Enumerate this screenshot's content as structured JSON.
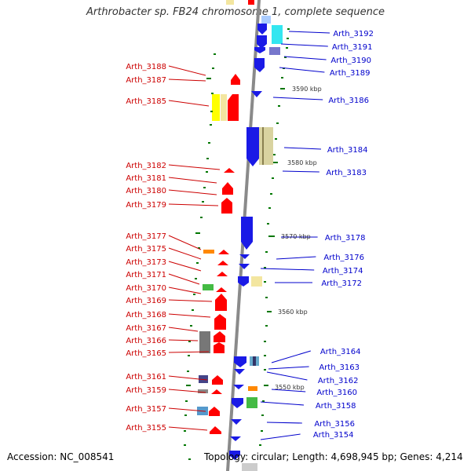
{
  "title": "Arthrobacter sp. FB24 chromosome 1, complete sequence",
  "footer": {
    "accession": "Accession: NC_008541",
    "topology": "Topology: circular; Length: 4,698,945 bp; Genes: 4,214"
  },
  "colors": {
    "forward_label": "#cc0000",
    "reverse_label": "#0000cc",
    "forward_gene": "#ff0000",
    "reverse_gene": "#0000ee",
    "backbone": "#888888",
    "tick": "#006600"
  },
  "scale_markers": [
    "3590 kbp",
    "3580 kbp",
    "3570 kbp",
    "3560 kbp",
    "3550 kbp"
  ],
  "left_labels": [
    "Arth_3188",
    "Arth_3187",
    "Arth_3185",
    "Arth_3182",
    "Arth_3181",
    "Arth_3180",
    "Arth_3179",
    "Arth_3177",
    "Arth_3175",
    "Arth_3173",
    "Arth_3171",
    "Arth_3170",
    "Arth_3169",
    "Arth_3168",
    "Arth_3167",
    "Arth_3166",
    "Arth_3165",
    "Arth_3161",
    "Arth_3159",
    "Arth_3157",
    "Arth_3155"
  ],
  "right_labels": [
    "Arth_3192",
    "Arth_3191",
    "Arth_3190",
    "Arth_3189",
    "Arth_3186",
    "Arth_3184",
    "Arth_3183",
    "Arth_3178",
    "Arth_3176",
    "Arth_3174",
    "Arth_3172",
    "Arth_3164",
    "Arth_3163",
    "Arth_3162",
    "Arth_3160",
    "Arth_3158",
    "Arth_3156",
    "Arth_3154"
  ]
}
